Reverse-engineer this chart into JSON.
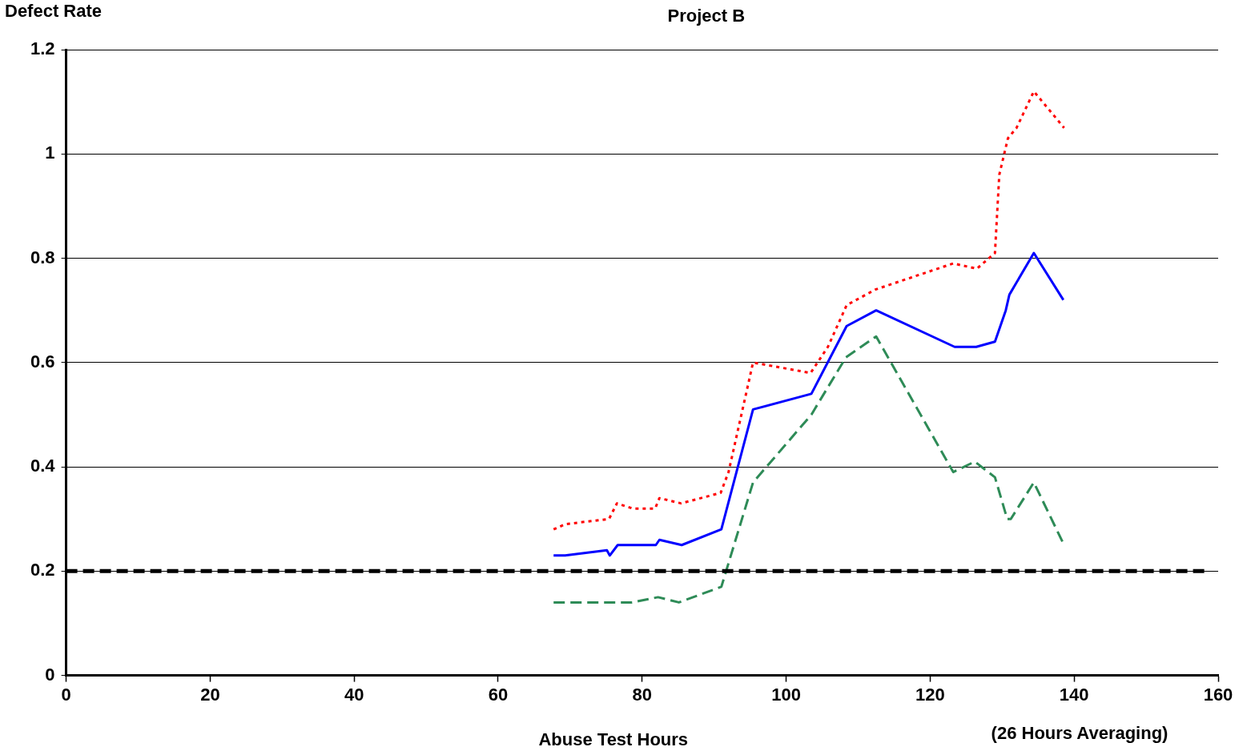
{
  "chart_data": {
    "type": "line",
    "title": "Project B",
    "xlabel": "Abuse Test Hours",
    "ylabel": "Defect Rate",
    "annotations": [
      "(26 Hours Averaging)"
    ],
    "xlim": [
      0,
      160
    ],
    "xticks": [
      0,
      20,
      40,
      60,
      80,
      100,
      120,
      140,
      160
    ],
    "ylim": [
      0,
      1.2
    ],
    "yticks": [
      0,
      0.2,
      0.4,
      0.6,
      0.8,
      1,
      1.2
    ],
    "grid": "y",
    "legend": false,
    "marker": "none",
    "ref_lines": [
      {
        "axis": "y",
        "value": 0.2,
        "color": "#000000",
        "line_style": "dashed"
      }
    ],
    "series": [
      {
        "color": "#0000ff",
        "line_style": "solid",
        "x": [
          67.7,
          69.3,
          75.1,
          75.5,
          76.6,
          81.9,
          82.4,
          85.5,
          91,
          95.4,
          103.5,
          108.4,
          112.5,
          123.4,
          126.4,
          129,
          130.5,
          131,
          134.4,
          138.5
        ],
        "values": [
          0.23,
          0.23,
          0.24,
          0.23,
          0.25,
          0.25,
          0.26,
          0.25,
          0.28,
          0.51,
          0.54,
          0.67,
          0.7,
          0.63,
          0.63,
          0.64,
          0.7,
          0.73,
          0.81,
          0.72
        ]
      },
      {
        "color": "#ff0000",
        "line_style": "dotted",
        "x": [
          67.7,
          69.3,
          75.4,
          76.5,
          78.7,
          81.8,
          82.4,
          85.4,
          90.9,
          92,
          95.4,
          103.4,
          105.8,
          108.4,
          112.4,
          123.2,
          126.5,
          129,
          129.6,
          130.8,
          132,
          134.4,
          138.6
        ],
        "values": [
          0.28,
          0.29,
          0.3,
          0.33,
          0.32,
          0.32,
          0.34,
          0.33,
          0.35,
          0.39,
          0.6,
          0.58,
          0.63,
          0.71,
          0.74,
          0.79,
          0.78,
          0.81,
          0.96,
          1.03,
          1.05,
          1.12,
          1.05
        ]
      },
      {
        "color": "#2e8b57",
        "line_style": "dashed",
        "x": [
          67.7,
          78.6,
          82.2,
          85.1,
          91,
          95.4,
          103.5,
          108.3,
          112.5,
          123.2,
          126.2,
          129,
          130.7,
          131.2,
          134.4,
          138.6
        ],
        "values": [
          0.14,
          0.14,
          0.15,
          0.14,
          0.17,
          0.37,
          0.5,
          0.61,
          0.65,
          0.39,
          0.41,
          0.38,
          0.3,
          0.3,
          0.37,
          0.25
        ]
      }
    ]
  }
}
